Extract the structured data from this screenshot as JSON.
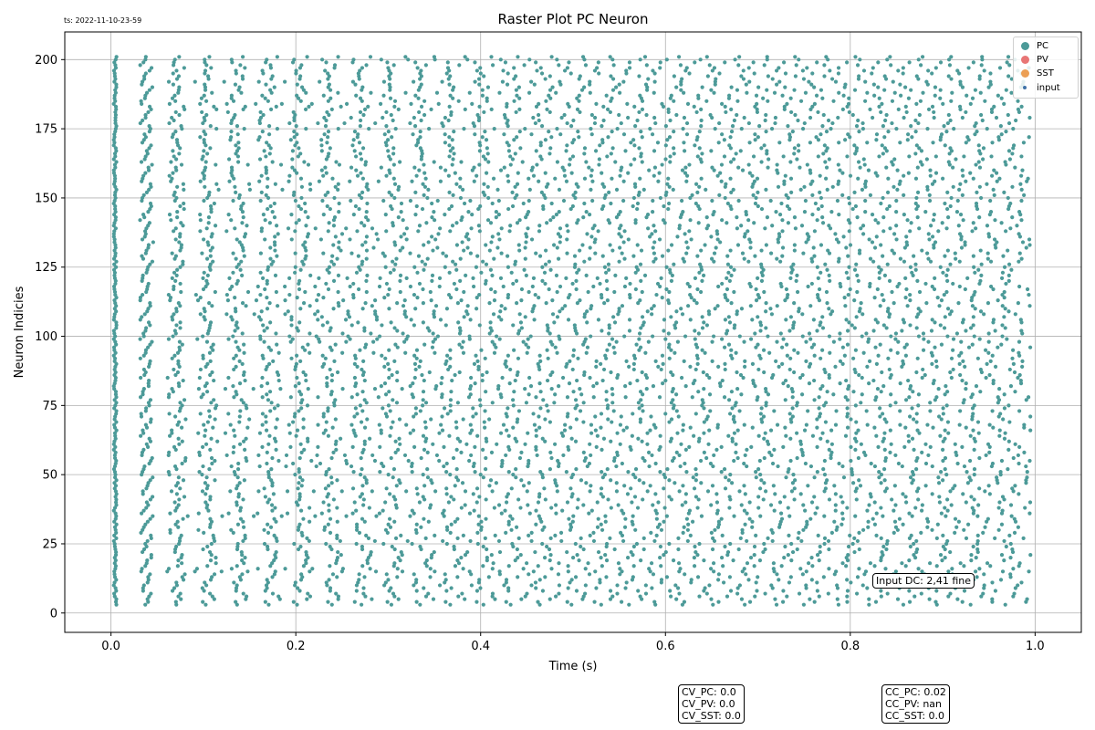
{
  "timestamp": "ts: 2022-11-10-23-59",
  "chart_data": {
    "type": "scatter",
    "title": "Raster Plot PC Neuron",
    "xlabel": "Time (s)",
    "ylabel": "Neuron Indicies",
    "xlim": [
      -0.05,
      1.05
    ],
    "ylim": [
      -7,
      210
    ],
    "xticks": [
      0.0,
      0.2,
      0.4,
      0.6,
      0.8,
      1.0
    ],
    "xtick_labels": [
      "0.0",
      "0.2",
      "0.4",
      "0.6",
      "0.8",
      "1.0"
    ],
    "yticks": [
      0,
      25,
      50,
      75,
      100,
      125,
      150,
      175,
      200
    ],
    "ytick_labels": [
      "0",
      "25",
      "50",
      "75",
      "100",
      "125",
      "150",
      "175",
      "200"
    ],
    "grid": true,
    "legend_position": "top-right",
    "legend": [
      {
        "name": "PC",
        "color": "#4c9a98"
      },
      {
        "name": "PV",
        "color": "#e87575"
      },
      {
        "name": "SST",
        "color": "#ec9f55"
      },
      {
        "name": "input",
        "color": "#3f72a8"
      }
    ],
    "series": [
      {
        "name": "PC",
        "color": "#4c9a98",
        "neuron_range": [
          3,
          201
        ],
        "approx_isi_s": 0.033,
        "first_spike_s": 0.003,
        "note_onset_burst_s": [
          0.0,
          0.006
        ]
      }
    ],
    "annotation": "Input DC: 2,41 fine",
    "stats_cv": [
      "CV_PC: 0.0",
      "CV_PV: 0.0",
      "CV_SST: 0.0"
    ],
    "stats_cc": [
      "CC_PC: 0.02",
      "CC_PV: nan",
      "CC_SST: 0.0"
    ]
  }
}
